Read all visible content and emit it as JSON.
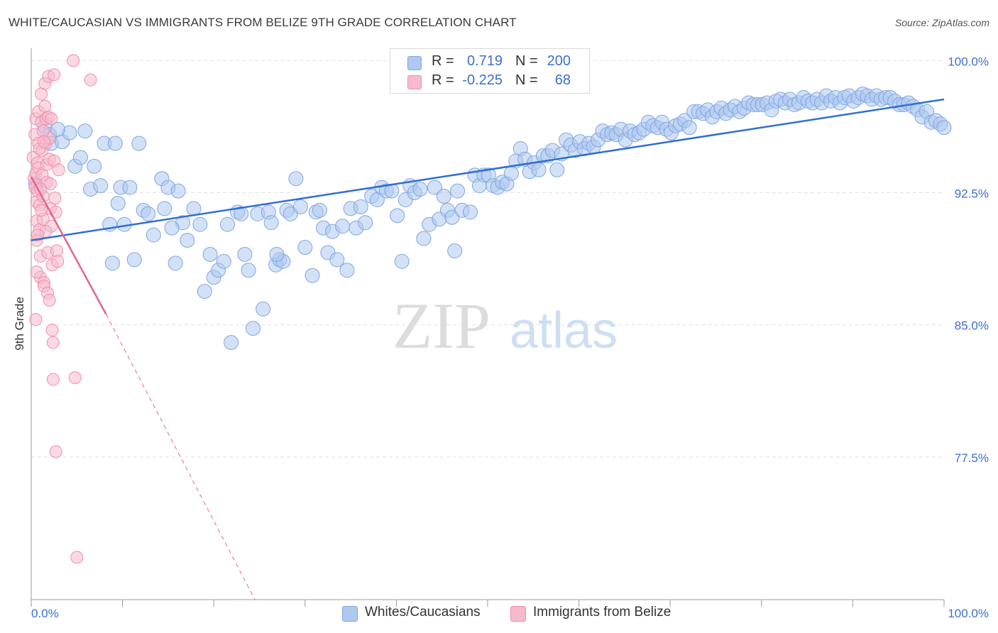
{
  "title": "WHITE/CAUCASIAN VS IMMIGRANTS FROM BELIZE 9TH GRADE CORRELATION CHART",
  "source": "Source: ZipAtlas.com",
  "watermark": {
    "zip": "ZIP",
    "atlas": "atlas"
  },
  "colors": {
    "blue_fill": "#aec8f0",
    "blue_stroke": "#7ea6e0",
    "blue_line": "#2f6fd0",
    "pink_fill": "#f7b9cc",
    "pink_stroke": "#ee8fad",
    "pink_line": "#e8648f",
    "axis_text": "#3d6fd0",
    "grid": "#e3e3e3"
  },
  "legend": {
    "rows": [
      {
        "r_label": "R =",
        "r_value": "0.719",
        "n_label": "N =",
        "n_value": "200",
        "color": "#aec8f0",
        "border": "#7ea6e0"
      },
      {
        "r_label": "R =",
        "r_value": "-0.225",
        "n_label": "N =",
        "n_value": "68",
        "color": "#f7b9cc",
        "border": "#ee8fad"
      }
    ]
  },
  "bottom_legend": [
    {
      "label": "Whites/Caucasians",
      "color": "#aec8f0",
      "border": "#7ea6e0"
    },
    {
      "label": "Immigrants from Belize",
      "color": "#f7b9cc",
      "border": "#ee8fad"
    }
  ],
  "chart_data": {
    "type": "scatter",
    "title": "WHITE/CAUCASIAN VS IMMIGRANTS FROM BELIZE 9TH GRADE CORRELATION CHART",
    "xlabel": "",
    "ylabel": "9th Grade",
    "xlim": [
      0,
      100
    ],
    "ylim": [
      69.4,
      100.7
    ],
    "x_tick_labels": [
      "0.0%",
      "100.0%"
    ],
    "y_ticks": [
      100.0,
      92.5,
      85.0,
      77.5
    ],
    "y_tick_labels": [
      "100.0%",
      "92.5%",
      "85.0%",
      "77.5%"
    ],
    "grid": true,
    "series": [
      {
        "name": "Whites/Caucasians",
        "r": 0.719,
        "n": 200,
        "trend": {
          "x": [
            0,
            100
          ],
          "y": [
            89.8,
            97.8
          ],
          "dashed_to": null
        },
        "points": [
          [
            0.5,
            93.0
          ],
          [
            1.5,
            96.3
          ],
          [
            2.0,
            95.8
          ],
          [
            2.2,
            95.3
          ],
          [
            3.4,
            95.4
          ],
          [
            4.2,
            95.9
          ],
          [
            4.8,
            94.0
          ],
          [
            5.4,
            94.5
          ],
          [
            5.9,
            96.0
          ],
          [
            6.5,
            92.7
          ],
          [
            6.9,
            94.0
          ],
          [
            8.0,
            95.3
          ],
          [
            8.6,
            90.7
          ],
          [
            8.9,
            88.5
          ],
          [
            9.2,
            95.3
          ],
          [
            9.5,
            91.9
          ],
          [
            9.8,
            92.8
          ],
          [
            10.2,
            90.7
          ],
          [
            10.8,
            92.8
          ],
          [
            11.3,
            88.7
          ],
          [
            11.8,
            95.3
          ],
          [
            12.3,
            91.5
          ],
          [
            12.8,
            91.3
          ],
          [
            13.4,
            90.1
          ],
          [
            14.3,
            93.3
          ],
          [
            14.6,
            91.6
          ],
          [
            15.0,
            92.8
          ],
          [
            15.8,
            88.5
          ],
          [
            16.1,
            92.6
          ],
          [
            16.6,
            90.8
          ],
          [
            17.1,
            89.8
          ],
          [
            17.8,
            91.6
          ],
          [
            18.5,
            90.7
          ],
          [
            19.0,
            86.9
          ],
          [
            19.6,
            89.0
          ],
          [
            20.0,
            87.7
          ],
          [
            20.5,
            88.1
          ],
          [
            21.1,
            88.6
          ],
          [
            21.5,
            90.7
          ],
          [
            21.9,
            84.0
          ],
          [
            22.6,
            91.4
          ],
          [
            23.0,
            91.3
          ],
          [
            23.4,
            89.0
          ],
          [
            23.8,
            88.1
          ],
          [
            24.3,
            84.8
          ],
          [
            24.8,
            91.3
          ],
          [
            25.4,
            85.9
          ],
          [
            26.0,
            91.4
          ],
          [
            26.3,
            90.8
          ],
          [
            26.8,
            88.4
          ],
          [
            27.2,
            88.7
          ],
          [
            27.6,
            88.6
          ],
          [
            28.0,
            91.5
          ],
          [
            28.4,
            91.3
          ],
          [
            29.0,
            93.3
          ],
          [
            29.5,
            91.7
          ],
          [
            30.0,
            89.4
          ],
          [
            30.8,
            87.8
          ],
          [
            31.2,
            91.4
          ],
          [
            31.6,
            91.5
          ],
          [
            32.0,
            90.5
          ],
          [
            32.5,
            89.1
          ],
          [
            33.0,
            90.3
          ],
          [
            33.5,
            88.7
          ],
          [
            34.1,
            90.6
          ],
          [
            34.6,
            88.1
          ],
          [
            35.0,
            91.6
          ],
          [
            35.6,
            90.5
          ],
          [
            36.1,
            91.7
          ],
          [
            36.6,
            90.8
          ],
          [
            37.3,
            92.3
          ],
          [
            37.9,
            92.1
          ],
          [
            38.4,
            92.8
          ],
          [
            38.9,
            92.6
          ],
          [
            39.5,
            92.6
          ],
          [
            40.1,
            91.2
          ],
          [
            40.6,
            88.6
          ],
          [
            41.0,
            92.1
          ],
          [
            41.5,
            92.9
          ],
          [
            42.0,
            92.5
          ],
          [
            42.6,
            92.7
          ],
          [
            43.0,
            89.9
          ],
          [
            43.6,
            90.7
          ],
          [
            44.2,
            92.8
          ],
          [
            44.7,
            91.0
          ],
          [
            45.2,
            92.3
          ],
          [
            45.6,
            91.5
          ],
          [
            46.1,
            91.1
          ],
          [
            46.7,
            92.6
          ],
          [
            47.2,
            91.5
          ],
          [
            48.1,
            91.4
          ],
          [
            48.6,
            93.5
          ],
          [
            49.1,
            92.9
          ],
          [
            49.6,
            93.5
          ],
          [
            50.1,
            93.5
          ],
          [
            50.6,
            92.9
          ],
          [
            51.1,
            92.8
          ],
          [
            51.6,
            93.1
          ],
          [
            52.1,
            93.0
          ],
          [
            52.6,
            93.6
          ],
          [
            53.1,
            94.3
          ],
          [
            53.6,
            95.0
          ],
          [
            54.1,
            94.4
          ],
          [
            54.6,
            93.7
          ],
          [
            55.1,
            94.2
          ],
          [
            55.6,
            93.8
          ],
          [
            56.1,
            94.6
          ],
          [
            56.6,
            94.6
          ],
          [
            57.1,
            94.9
          ],
          [
            57.6,
            93.8
          ],
          [
            58.1,
            94.7
          ],
          [
            58.6,
            95.5
          ],
          [
            59.1,
            95.2
          ],
          [
            59.6,
            94.9
          ],
          [
            60.1,
            95.4
          ],
          [
            60.6,
            95.0
          ],
          [
            61.1,
            95.3
          ],
          [
            61.6,
            95.1
          ],
          [
            62.1,
            95.5
          ],
          [
            62.6,
            96.0
          ],
          [
            63.1,
            95.8
          ],
          [
            63.6,
            95.9
          ],
          [
            64.1,
            95.8
          ],
          [
            64.6,
            96.1
          ],
          [
            65.1,
            95.5
          ],
          [
            65.6,
            96.0
          ],
          [
            66.1,
            95.8
          ],
          [
            66.6,
            95.9
          ],
          [
            67.1,
            96.1
          ],
          [
            67.6,
            96.5
          ],
          [
            68.1,
            96.3
          ],
          [
            68.6,
            96.2
          ],
          [
            69.1,
            96.5
          ],
          [
            69.6,
            96.1
          ],
          [
            70.1,
            95.9
          ],
          [
            70.6,
            96.3
          ],
          [
            71.1,
            96.4
          ],
          [
            71.6,
            96.6
          ],
          [
            72.1,
            96.2
          ],
          [
            72.6,
            97.1
          ],
          [
            73.1,
            97.1
          ],
          [
            73.6,
            97.0
          ],
          [
            74.1,
            97.2
          ],
          [
            74.6,
            96.8
          ],
          [
            75.1,
            97.1
          ],
          [
            75.6,
            97.3
          ],
          [
            76.1,
            97.0
          ],
          [
            76.6,
            97.2
          ],
          [
            77.1,
            97.4
          ],
          [
            77.6,
            97.1
          ],
          [
            78.1,
            97.3
          ],
          [
            78.6,
            97.6
          ],
          [
            79.1,
            97.5
          ],
          [
            79.6,
            97.5
          ],
          [
            80.1,
            97.5
          ],
          [
            80.6,
            97.6
          ],
          [
            81.1,
            97.2
          ],
          [
            81.6,
            97.7
          ],
          [
            82.1,
            97.8
          ],
          [
            82.6,
            97.6
          ],
          [
            83.1,
            97.8
          ],
          [
            83.6,
            97.5
          ],
          [
            84.1,
            97.6
          ],
          [
            84.6,
            97.9
          ],
          [
            85.1,
            97.7
          ],
          [
            85.6,
            97.6
          ],
          [
            86.1,
            97.8
          ],
          [
            86.6,
            97.6
          ],
          [
            87.1,
            98.0
          ],
          [
            87.6,
            97.7
          ],
          [
            88.1,
            97.9
          ],
          [
            88.6,
            97.6
          ],
          [
            89.1,
            97.9
          ],
          [
            89.6,
            98.0
          ],
          [
            90.1,
            97.7
          ],
          [
            90.6,
            97.9
          ],
          [
            91.1,
            98.1
          ],
          [
            91.6,
            98.0
          ],
          [
            92.1,
            97.8
          ],
          [
            92.6,
            98.0
          ],
          [
            93.1,
            97.8
          ],
          [
            93.6,
            97.9
          ],
          [
            94.1,
            97.9
          ],
          [
            94.6,
            97.7
          ],
          [
            95.1,
            97.5
          ],
          [
            95.6,
            97.5
          ],
          [
            96.1,
            97.6
          ],
          [
            96.6,
            97.4
          ],
          [
            97.1,
            97.2
          ],
          [
            97.6,
            96.8
          ],
          [
            98.1,
            97.1
          ],
          [
            98.6,
            96.5
          ],
          [
            99.1,
            96.6
          ],
          [
            99.6,
            96.4
          ],
          [
            100.0,
            96.2
          ],
          [
            2.9,
            96.1
          ],
          [
            7.6,
            92.9
          ],
          [
            15.4,
            90.5
          ],
          [
            26.9,
            89.0
          ],
          [
            46.4,
            89.2
          ]
        ]
      },
      {
        "name": "Immigrants from Belize",
        "r": -0.225,
        "n": 68,
        "trend": {
          "x": [
            0,
            8.2
          ],
          "y": [
            93.4,
            85.6
          ],
          "dashed_to": [
            24.5,
            69.4
          ]
        },
        "points": [
          [
            0.2,
            94.5
          ],
          [
            0.3,
            93.3
          ],
          [
            0.4,
            92.8
          ],
          [
            0.4,
            95.8
          ],
          [
            0.5,
            96.7
          ],
          [
            0.5,
            93.6
          ],
          [
            0.6,
            92.0
          ],
          [
            0.6,
            90.9
          ],
          [
            0.6,
            89.8
          ],
          [
            0.7,
            94.2
          ],
          [
            0.7,
            92.6
          ],
          [
            0.8,
            97.1
          ],
          [
            0.8,
            95.3
          ],
          [
            0.8,
            93.9
          ],
          [
            0.9,
            91.8
          ],
          [
            0.9,
            90.4
          ],
          [
            1.0,
            88.9
          ],
          [
            1.0,
            87.7
          ],
          [
            1.1,
            98.1
          ],
          [
            1.1,
            96.5
          ],
          [
            1.2,
            94.9
          ],
          [
            1.2,
            93.5
          ],
          [
            1.3,
            92.3
          ],
          [
            1.3,
            91.0
          ],
          [
            1.4,
            87.4
          ],
          [
            1.4,
            87.2
          ],
          [
            1.5,
            98.7
          ],
          [
            1.5,
            97.4
          ],
          [
            1.6,
            96.7
          ],
          [
            1.6,
            95.3
          ],
          [
            1.7,
            94.1
          ],
          [
            1.7,
            93.1
          ],
          [
            1.8,
            89.1
          ],
          [
            1.8,
            86.8
          ],
          [
            1.9,
            99.1
          ],
          [
            1.9,
            96.8
          ],
          [
            2.0,
            95.6
          ],
          [
            2.0,
            94.4
          ],
          [
            2.1,
            93.0
          ],
          [
            2.1,
            91.6
          ],
          [
            2.2,
            90.6
          ],
          [
            2.3,
            88.4
          ],
          [
            2.3,
            84.7
          ],
          [
            2.4,
            81.9
          ],
          [
            2.5,
            99.2
          ],
          [
            2.5,
            94.3
          ],
          [
            2.6,
            92.2
          ],
          [
            2.7,
            91.4
          ],
          [
            2.8,
            89.2
          ],
          [
            2.9,
            88.6
          ],
          [
            2.4,
            84.0
          ],
          [
            4.6,
            100.0
          ],
          [
            4.8,
            82.0
          ],
          [
            5.0,
            71.8
          ],
          [
            6.5,
            98.9
          ],
          [
            2.7,
            77.8
          ],
          [
            0.5,
            85.3
          ],
          [
            0.6,
            88.0
          ],
          [
            3.0,
            93.8
          ],
          [
            1.3,
            96.0
          ],
          [
            1.0,
            92.7
          ],
          [
            1.6,
            90.3
          ],
          [
            0.9,
            95.0
          ],
          [
            2.2,
            96.7
          ],
          [
            0.7,
            90.1
          ],
          [
            1.4,
            95.4
          ],
          [
            1.1,
            91.5
          ],
          [
            2.0,
            86.4
          ]
        ]
      }
    ]
  }
}
